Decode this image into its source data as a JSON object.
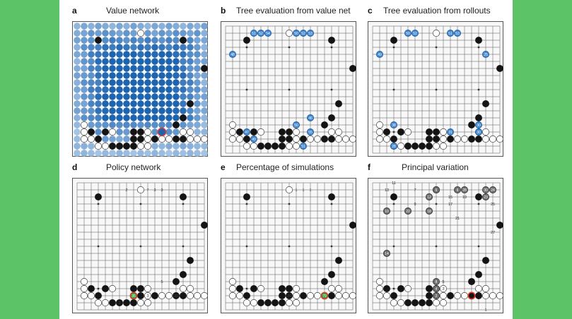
{
  "panels": [
    {
      "id": "a",
      "label": "a",
      "title": "Value network"
    },
    {
      "id": "b",
      "label": "b",
      "title": "Tree evaluation from value net"
    },
    {
      "id": "c",
      "label": "c",
      "title": "Tree evaluation from rollouts"
    },
    {
      "id": "d",
      "label": "d",
      "title": "Policy network"
    },
    {
      "id": "e",
      "label": "e",
      "title": "Percentage of simulations"
    },
    {
      "id": "f",
      "label": "f",
      "title": "Principal variation"
    }
  ],
  "board_size": 19,
  "colors": {
    "page_bg": "#5cc466",
    "sheet_bg": "#ffffff",
    "line": "#555555",
    "black_stone": "#141414",
    "white_stone": "#ffffff",
    "value_light": "#cfe3f6",
    "value_dark": "#1c63b0",
    "highlight": "#e2362b",
    "policy_green": "#3f9a3f",
    "variation_gray": "#6e6e6e"
  },
  "position": {
    "black": [
      [
        2,
        3
      ],
      [
        2,
        15
      ],
      [
        6,
        18
      ],
      [
        15,
        2
      ],
      [
        15,
        4
      ],
      [
        15,
        8
      ],
      [
        15,
        9
      ],
      [
        16,
        3
      ],
      [
        16,
        8
      ],
      [
        16,
        9
      ],
      [
        16,
        11
      ],
      [
        16,
        14
      ],
      [
        17,
        5
      ],
      [
        17,
        6
      ],
      [
        17,
        7
      ],
      [
        17,
        8
      ],
      [
        16,
        15
      ],
      [
        14,
        14
      ],
      [
        13,
        15
      ],
      [
        11,
        16
      ]
    ],
    "white": [
      [
        1,
        9
      ],
      [
        14,
        1
      ],
      [
        15,
        1
      ],
      [
        15,
        5
      ],
      [
        15,
        10
      ],
      [
        16,
        1
      ],
      [
        16,
        2
      ],
      [
        16,
        10
      ],
      [
        16,
        12
      ],
      [
        16,
        13
      ],
      [
        17,
        3
      ],
      [
        17,
        4
      ],
      [
        17,
        9
      ],
      [
        17,
        10
      ],
      [
        15,
        15
      ],
      [
        15,
        16
      ],
      [
        16,
        16
      ],
      [
        16,
        17
      ],
      [
        16,
        18
      ]
    ]
  },
  "value_highlight": [
    15,
    12
  ],
  "tree_value_labels": [
    {
      "text": "51",
      "r": 1,
      "c": 4
    },
    {
      "text": "52",
      "r": 1,
      "c": 5
    },
    {
      "text": "54",
      "r": 1,
      "c": 6
    },
    {
      "text": "50",
      "r": 1,
      "c": 10
    },
    {
      "text": "52",
      "r": 1,
      "c": 11
    },
    {
      "text": "53",
      "r": 1,
      "c": 12
    },
    {
      "text": "48",
      "r": 4,
      "c": 1
    },
    {
      "text": "55",
      "r": 15,
      "c": 12
    },
    {
      "text": "49",
      "r": 16,
      "c": 4
    },
    {
      "text": "50",
      "r": 14,
      "c": 10
    },
    {
      "text": "51",
      "r": 17,
      "c": 11
    },
    {
      "text": "47",
      "r": 15,
      "c": 3
    },
    {
      "text": "46",
      "r": 13,
      "c": 12
    }
  ],
  "tree_rollout_labels": [
    {
      "text": "50",
      "r": 1,
      "c": 5
    },
    {
      "text": "52",
      "r": 1,
      "c": 6
    },
    {
      "text": "51",
      "r": 1,
      "c": 11
    },
    {
      "text": "53",
      "r": 1,
      "c": 12
    },
    {
      "text": "49",
      "r": 4,
      "c": 1
    },
    {
      "text": "30",
      "r": 14,
      "c": 15
    },
    {
      "text": "25",
      "r": 4,
      "c": 16
    },
    {
      "text": "28",
      "r": 17,
      "c": 3
    },
    {
      "text": "31",
      "r": 15,
      "c": 11
    },
    {
      "text": "38",
      "r": 14,
      "c": 3
    },
    {
      "text": "30",
      "r": 15,
      "c": 15
    }
  ],
  "policy_labels": [
    {
      "text": "2",
      "r": 1,
      "c": 7
    },
    {
      "text": "7",
      "r": 1,
      "c": 10
    },
    {
      "text": "3",
      "r": 1,
      "c": 11
    },
    {
      "text": "3",
      "r": 1,
      "c": 12
    },
    {
      "text": "5",
      "r": 14,
      "c": 12
    },
    {
      "text": "3",
      "r": 16,
      "c": 10
    },
    {
      "text": "2",
      "r": 17,
      "c": 6
    },
    {
      "text": "20",
      "r": 16,
      "c": 14
    }
  ],
  "policy_highlight": {
    "text": "35",
    "r": 16,
    "c": 8
  },
  "sim_labels": [
    {
      "text": "1",
      "r": 1,
      "c": 10
    },
    {
      "text": "1",
      "r": 1,
      "c": 11
    },
    {
      "text": "1",
      "r": 1,
      "c": 12
    },
    {
      "text": "20",
      "r": 16,
      "c": 9
    }
  ],
  "sim_highlight": {
    "text": "79",
    "r": 16,
    "c": 14
  },
  "pv_black": [
    {
      "text": "6",
      "r": 1,
      "c": 9
    },
    {
      "text": "6",
      "r": 1,
      "c": 12
    },
    {
      "text": "28",
      "r": 1,
      "c": 13
    },
    {
      "text": "12",
      "r": 2,
      "c": 8
    },
    {
      "text": "22",
      "r": 4,
      "c": 5
    },
    {
      "text": "18",
      "r": 4,
      "c": 8
    },
    {
      "text": "14",
      "r": 10,
      "c": 2
    },
    {
      "text": "8",
      "r": 14,
      "c": 9
    },
    {
      "text": "4",
      "r": 15,
      "c": 9
    },
    {
      "text": "2",
      "r": 16,
      "c": 9
    },
    {
      "text": "30",
      "r": 1,
      "c": 16
    },
    {
      "text": "23",
      "r": 2,
      "c": 16
    },
    {
      "text": "24",
      "r": 1,
      "c": 17
    },
    {
      "text": "10",
      "r": 4,
      "c": 2
    }
  ],
  "pv_text": [
    {
      "text": "11",
      "r": 0,
      "c": 3
    },
    {
      "text": "13",
      "r": 1,
      "c": 2
    },
    {
      "text": "7",
      "r": 1,
      "c": 6
    },
    {
      "text": "9",
      "r": 3,
      "c": 6
    },
    {
      "text": "15",
      "r": 2,
      "c": 11
    },
    {
      "text": "17",
      "r": 3,
      "c": 11
    },
    {
      "text": "19",
      "r": 2,
      "c": 13
    },
    {
      "text": "21",
      "r": 5,
      "c": 12
    },
    {
      "text": "25",
      "r": 3,
      "c": 17
    },
    {
      "text": "27",
      "r": 7,
      "c": 17
    },
    {
      "text": "5",
      "r": 14,
      "c": 10
    },
    {
      "text": "3",
      "r": 15,
      "c": 10
    },
    {
      "text": "1",
      "r": 18,
      "c": 16
    }
  ],
  "pv_highlight": [
    16,
    14
  ]
}
